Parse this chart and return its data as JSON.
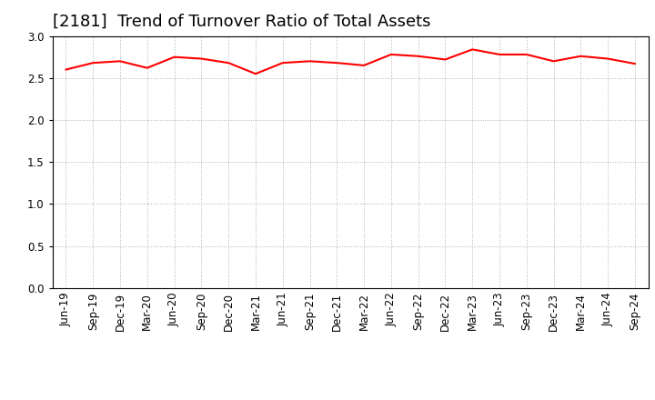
{
  "title": "[2181]  Trend of Turnover Ratio of Total Assets",
  "labels": [
    "Jun-19",
    "Sep-19",
    "Dec-19",
    "Mar-20",
    "Jun-20",
    "Sep-20",
    "Dec-20",
    "Mar-21",
    "Jun-21",
    "Sep-21",
    "Dec-21",
    "Mar-22",
    "Jun-22",
    "Sep-22",
    "Dec-22",
    "Mar-23",
    "Jun-23",
    "Sep-23",
    "Dec-23",
    "Mar-24",
    "Jun-24",
    "Sep-24"
  ],
  "values": [
    2.6,
    2.68,
    2.7,
    2.62,
    2.75,
    2.73,
    2.68,
    2.55,
    2.68,
    2.7,
    2.68,
    2.65,
    2.78,
    2.76,
    2.72,
    2.84,
    2.78,
    2.78,
    2.7,
    2.76,
    2.73,
    2.67
  ],
  "line_color": "#ff0000",
  "line_width": 1.5,
  "ylim": [
    0.0,
    3.0
  ],
  "yticks": [
    0.0,
    0.5,
    1.0,
    1.5,
    2.0,
    2.5,
    3.0
  ],
  "background_color": "#ffffff",
  "grid_color": "#999999",
  "title_fontsize": 13,
  "tick_fontsize": 8.5
}
